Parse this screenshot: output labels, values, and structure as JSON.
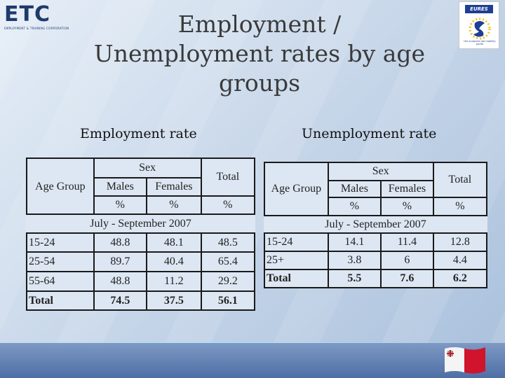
{
  "header": {
    "title_lines": [
      "Employment /",
      "Unemployment rates by age",
      "groups"
    ],
    "logo_left": {
      "text": "ETC",
      "tagline": "EMPLOYMENT & TRAINING CORPORATION",
      "icon": "etc-logo-icon"
    },
    "logo_right": {
      "text": "EURES",
      "tagline": "the european job mobility portal",
      "icon": "eures-logo-icon"
    }
  },
  "footer": {
    "flag_icon": "malta-flag-icon",
    "colors": {
      "flag_red": "#cf142b",
      "band": "#4e6ea5"
    }
  },
  "employment": {
    "subtitle": "Employment rate",
    "header": {
      "sex": "Sex",
      "age_group": "Age Group",
      "males": "Males",
      "females": "Females",
      "total": "Total",
      "unit": "%"
    },
    "period": "July - September 2007",
    "rows": [
      {
        "age": "15-24",
        "males": "48.8",
        "females": "48.1",
        "total": "48.5"
      },
      {
        "age": "25-54",
        "males": "89.7",
        "females": "40.4",
        "total": "65.4"
      },
      {
        "age": "55-64",
        "males": "48.8",
        "females": "11.2",
        "total": "29.2"
      }
    ],
    "total_row": {
      "age": "Total",
      "males": "74.5",
      "females": "37.5",
      "total": "56.1"
    }
  },
  "unemployment": {
    "subtitle": "Unemployment rate",
    "header": {
      "sex": "Sex",
      "age_group": "Age Group",
      "males": "Males",
      "females": "Females",
      "total": "Total",
      "unit": "%"
    },
    "period": "July - September 2007",
    "rows": [
      {
        "age": "15-24",
        "males": "14.1",
        "females": "11.4",
        "total": "12.8"
      },
      {
        "age": "25+",
        "males": "3.8",
        "females": "6",
        "total": "4.4"
      }
    ],
    "total_row": {
      "age": "Total",
      "males": "5.5",
      "females": "7.6",
      "total": "6.2"
    }
  }
}
